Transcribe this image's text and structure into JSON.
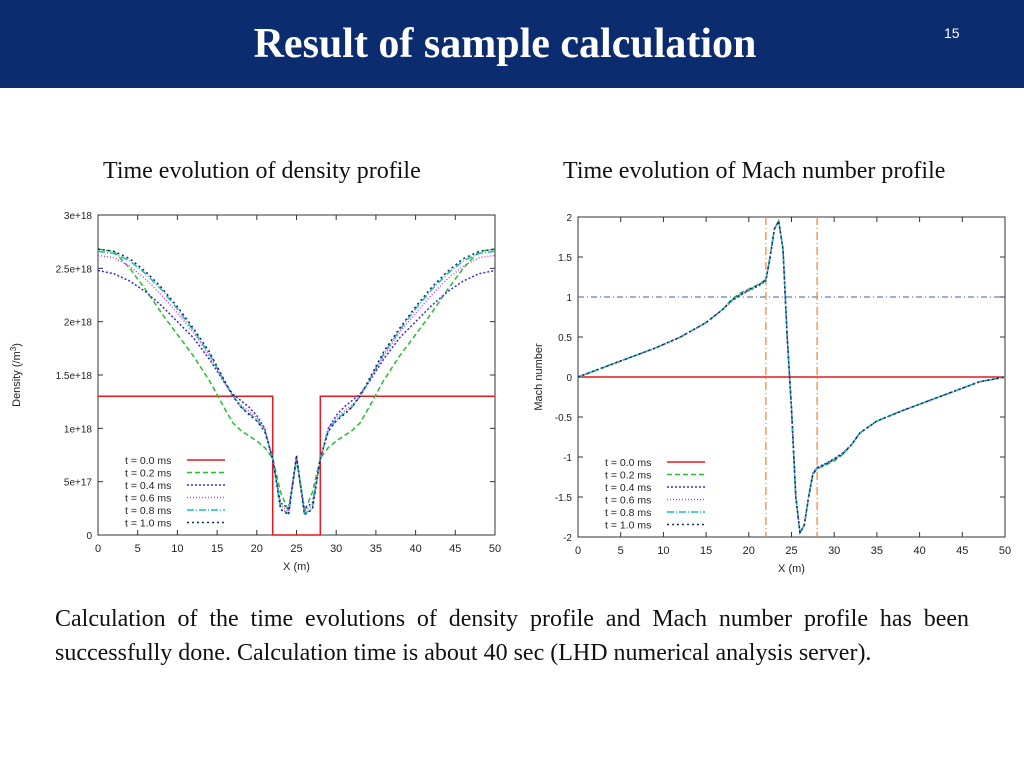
{
  "header": {
    "title": "Result of sample calculation",
    "page_number": "15",
    "background_color": "#0b2c6e"
  },
  "captions": {
    "left": "Time evolution of density profile",
    "right": "Time evolution of Mach number profile"
  },
  "body_text": "Calculation of the time evolutions of density profile and Mach number profile has been successfully done. Calculation time is about 40 sec (LHD numerical analysis server).",
  "chart_data": [
    {
      "type": "line",
      "xlabel": "X (m)",
      "ylabel": "Density (/m",
      "ylabel_sup": "3",
      "ylabel_close": ")",
      "xlim": [
        0,
        50
      ],
      "ylim": [
        0,
        3e+18
      ],
      "x_ticks": [
        0,
        5,
        10,
        15,
        20,
        25,
        30,
        35,
        40,
        45,
        50
      ],
      "x_tick_labels": [
        "0",
        "5",
        "10",
        "15",
        "20",
        "25",
        "30",
        "35",
        "40",
        "45",
        "50"
      ],
      "y_ticks": [
        0,
        5e+17,
        1e+18,
        1.5e+18,
        2e+18,
        2.5e+18,
        3e+18
      ],
      "y_tick_labels": [
        "0",
        "5e+17",
        "1e+18",
        "1.5e+18",
        "2e+18",
        "2.5e+18",
        "3e+18"
      ],
      "legend_position": "bottom-left",
      "series": [
        {
          "name": "t = 0.0 ms",
          "color": "#e41a1c",
          "dash": "",
          "x": [
            0,
            22,
            22,
            28,
            28,
            50
          ],
          "y": [
            1.3e+18,
            1.3e+18,
            0,
            0,
            1.3e+18,
            1.3e+18
          ]
        },
        {
          "name": "t = 0.2 ms",
          "color": "#22c02e",
          "dash": "5,3",
          "x": [
            0,
            2,
            4,
            6,
            8,
            10,
            12,
            14,
            16,
            17,
            18,
            19,
            20,
            21,
            22,
            23,
            24,
            25,
            26,
            27,
            28,
            29,
            30,
            31,
            32,
            33,
            34,
            36,
            38,
            40,
            42,
            44,
            46,
            48,
            50
          ],
          "y": [
            2.68e+18,
            2.66e+18,
            2.5e+18,
            2.3e+18,
            2.08e+18,
            1.88e+18,
            1.68e+18,
            1.45e+18,
            1.18e+18,
            1.05e+18,
            9.8e+17,
            9.3e+17,
            8.8e+17,
            8.2e+17,
            7.2e+17,
            4e+17,
            2.2e+17,
            7e+17,
            2.2e+17,
            4e+17,
            7.2e+17,
            8.2e+17,
            8.8e+17,
            9.3e+17,
            9.8e+17,
            1.05e+18,
            1.18e+18,
            1.45e+18,
            1.68e+18,
            1.88e+18,
            2.08e+18,
            2.3e+18,
            2.5e+18,
            2.66e+18,
            2.68e+18
          ]
        },
        {
          "name": "t = 0.4 ms",
          "color": "#3a2bd6",
          "dash": "2,2",
          "x": [
            0,
            2,
            4,
            6,
            8,
            10,
            12,
            14,
            16,
            17,
            18,
            19,
            20,
            21,
            22,
            23,
            24,
            25,
            26,
            27,
            28,
            29,
            30,
            31,
            32,
            33,
            34,
            36,
            38,
            40,
            42,
            44,
            46,
            48,
            50
          ],
          "y": [
            2.48e+18,
            2.45e+18,
            2.38e+18,
            2.28e+18,
            2.15e+18,
            2e+18,
            1.85e+18,
            1.65e+18,
            1.42e+18,
            1.32e+18,
            1.26e+18,
            1.2e+18,
            1.12e+18,
            1e+18,
            7e+17,
            3e+17,
            2.5e+17,
            7.2e+17,
            2.5e+17,
            3e+17,
            7e+17,
            1e+18,
            1.12e+18,
            1.2e+18,
            1.26e+18,
            1.32e+18,
            1.42e+18,
            1.65e+18,
            1.85e+18,
            2e+18,
            2.15e+18,
            2.28e+18,
            2.38e+18,
            2.45e+18,
            2.48e+18
          ]
        },
        {
          "name": "t = 0.6 ms",
          "color": "#d63ad6",
          "dash": "1,2",
          "x": [
            0,
            2,
            4,
            6,
            8,
            10,
            12,
            14,
            16,
            17,
            18,
            19,
            20,
            21,
            22,
            23,
            24,
            25,
            26,
            27,
            28,
            29,
            30,
            31,
            32,
            33,
            34,
            36,
            38,
            40,
            42,
            44,
            46,
            48,
            50
          ],
          "y": [
            2.62e+18,
            2.6e+18,
            2.52e+18,
            2.4e+18,
            2.25e+18,
            2.08e+18,
            1.9e+18,
            1.68e+18,
            1.42e+18,
            1.3e+18,
            1.22e+18,
            1.16e+18,
            1.1e+18,
            1e+18,
            7.2e+17,
            2.8e+17,
            2.2e+17,
            7.2e+17,
            2.2e+17,
            2.8e+17,
            7.2e+17,
            1e+18,
            1.1e+18,
            1.16e+18,
            1.22e+18,
            1.3e+18,
            1.42e+18,
            1.68e+18,
            1.9e+18,
            2.08e+18,
            2.25e+18,
            2.4e+18,
            2.52e+18,
            2.6e+18,
            2.62e+18
          ]
        },
        {
          "name": "t = 0.8 ms",
          "color": "#1cb8c8",
          "dash": "7,2,1,2",
          "x": [
            0,
            2,
            4,
            6,
            8,
            10,
            12,
            14,
            16,
            17,
            18,
            19,
            20,
            21,
            22,
            23,
            24,
            25,
            26,
            27,
            28,
            29,
            30,
            31,
            32,
            33,
            34,
            36,
            38,
            40,
            42,
            44,
            46,
            48,
            50
          ],
          "y": [
            2.66e+18,
            2.64e+18,
            2.57e+18,
            2.45e+18,
            2.3e+18,
            2.12e+18,
            1.92e+18,
            1.7e+18,
            1.43e+18,
            1.3e+18,
            1.2e+18,
            1.14e+18,
            1.08e+18,
            9.8e+17,
            7.2e+17,
            2.5e+17,
            2e+17,
            7.4e+17,
            2e+17,
            2.5e+17,
            7.2e+17,
            9.8e+17,
            1.08e+18,
            1.14e+18,
            1.2e+18,
            1.3e+18,
            1.43e+18,
            1.7e+18,
            1.92e+18,
            2.12e+18,
            2.3e+18,
            2.45e+18,
            2.57e+18,
            2.64e+18,
            2.66e+18
          ]
        },
        {
          "name": "t = 1.0 ms",
          "color": "#1a2a5a",
          "dash": "2,3",
          "x": [
            0,
            2,
            4,
            6,
            8,
            10,
            12,
            14,
            16,
            17,
            18,
            19,
            20,
            21,
            22,
            23,
            24,
            25,
            26,
            27,
            28,
            29,
            30,
            31,
            32,
            33,
            34,
            36,
            38,
            40,
            42,
            44,
            46,
            48,
            50
          ],
          "y": [
            2.68e+18,
            2.66e+18,
            2.59e+18,
            2.47e+18,
            2.32e+18,
            2.14e+18,
            1.94e+18,
            1.72e+18,
            1.44e+18,
            1.3e+18,
            1.2e+18,
            1.13e+18,
            1.07e+18,
            9.7e+17,
            7.2e+17,
            2.4e+17,
            1.9e+17,
            7.5e+17,
            1.9e+17,
            2.4e+17,
            7.2e+17,
            9.7e+17,
            1.07e+18,
            1.13e+18,
            1.2e+18,
            1.3e+18,
            1.44e+18,
            1.72e+18,
            1.94e+18,
            2.14e+18,
            2.32e+18,
            2.47e+18,
            2.59e+18,
            2.66e+18,
            2.68e+18
          ]
        }
      ]
    },
    {
      "type": "line",
      "xlabel": "X (m)",
      "ylabel": "Mach number",
      "xlim": [
        0,
        50
      ],
      "ylim": [
        -2,
        2
      ],
      "x_ticks": [
        0,
        5,
        10,
        15,
        20,
        25,
        30,
        35,
        40,
        45,
        50
      ],
      "x_tick_labels": [
        "0",
        "5",
        "10",
        "15",
        "20",
        "25",
        "30",
        "35",
        "40",
        "45",
        "50"
      ],
      "y_ticks": [
        -2,
        -1.5,
        -1,
        -0.5,
        0,
        0.5,
        1,
        1.5,
        2
      ],
      "y_tick_labels": [
        "-2",
        "-1.5",
        "-1",
        "-0.5",
        "0",
        "0.5",
        "1",
        "1.5",
        "2"
      ],
      "legend_position": "bottom-left",
      "reference_lines": [
        {
          "orientation": "horizontal",
          "value": 1,
          "color": "#3b5fa8"
        },
        {
          "orientation": "vertical",
          "value": 22,
          "color": "#f08a3c"
        },
        {
          "orientation": "vertical",
          "value": 28,
          "color": "#f08a3c"
        }
      ],
      "series": [
        {
          "name": "t = 0.0 ms",
          "color": "#e41a1c",
          "dash": "",
          "x": [
            0,
            50
          ],
          "y": [
            0,
            0
          ]
        },
        {
          "name": "t = 0.2 ms",
          "color": "#22c02e",
          "dash": "5,3",
          "x": [
            0,
            3,
            6,
            9,
            12,
            15,
            17,
            18,
            19,
            20,
            21,
            22,
            22.5,
            23,
            23.5,
            24,
            24.5,
            25,
            25.5,
            26,
            26.5,
            27,
            27.5,
            28,
            29,
            30,
            31,
            32,
            33,
            35,
            38,
            41,
            44,
            47,
            50
          ],
          "y": [
            0,
            0.12,
            0.24,
            0.36,
            0.5,
            0.68,
            0.85,
            0.97,
            1.05,
            1.1,
            1.15,
            1.22,
            1.5,
            1.85,
            1.95,
            1.6,
            0.5,
            -0.4,
            -1.5,
            -1.95,
            -1.85,
            -1.5,
            -1.22,
            -1.15,
            -1.1,
            -1.05,
            -0.97,
            -0.85,
            -0.7,
            -0.55,
            -0.42,
            -0.3,
            -0.18,
            -0.06,
            0
          ]
        },
        {
          "name": "t = 0.4 ms",
          "color": "#3a2bd6",
          "dash": "2,2",
          "x": [
            0,
            3,
            6,
            9,
            12,
            15,
            17,
            18,
            19,
            20,
            21,
            22,
            22.5,
            23,
            23.5,
            24,
            24.5,
            25,
            25.5,
            26,
            26.5,
            27,
            27.5,
            28,
            29,
            30,
            31,
            32,
            33,
            35,
            38,
            41,
            44,
            47,
            50
          ],
          "y": [
            0,
            0.12,
            0.24,
            0.36,
            0.5,
            0.68,
            0.85,
            0.95,
            1.02,
            1.08,
            1.13,
            1.2,
            1.5,
            1.85,
            1.95,
            1.6,
            0.5,
            -0.4,
            -1.5,
            -1.95,
            -1.85,
            -1.5,
            -1.2,
            -1.13,
            -1.08,
            -1.02,
            -0.95,
            -0.85,
            -0.7,
            -0.55,
            -0.42,
            -0.3,
            -0.18,
            -0.06,
            0
          ]
        },
        {
          "name": "t = 0.6 ms",
          "color": "#d63ad6",
          "dash": "1,2",
          "x": [
            0,
            3,
            6,
            9,
            12,
            15,
            17,
            18,
            19,
            20,
            21,
            22,
            22.5,
            23,
            23.5,
            24,
            24.5,
            25,
            25.5,
            26,
            26.5,
            27,
            27.5,
            28,
            29,
            30,
            31,
            32,
            33,
            35,
            38,
            41,
            44,
            47,
            50
          ],
          "y": [
            0,
            0.12,
            0.24,
            0.36,
            0.5,
            0.68,
            0.85,
            0.96,
            1.03,
            1.09,
            1.14,
            1.21,
            1.5,
            1.85,
            1.95,
            1.6,
            0.5,
            -0.4,
            -1.5,
            -1.95,
            -1.85,
            -1.5,
            -1.21,
            -1.14,
            -1.09,
            -1.03,
            -0.96,
            -0.85,
            -0.7,
            -0.55,
            -0.42,
            -0.3,
            -0.18,
            -0.06,
            0
          ]
        },
        {
          "name": "t = 0.8 ms",
          "color": "#1cb8c8",
          "dash": "7,2,1,2",
          "x": [
            0,
            3,
            6,
            9,
            12,
            15,
            17,
            18,
            19,
            20,
            21,
            22,
            22.5,
            23,
            23.5,
            24,
            24.5,
            25,
            25.5,
            26,
            26.5,
            27,
            27.5,
            28,
            29,
            30,
            31,
            32,
            33,
            35,
            38,
            41,
            44,
            47,
            50
          ],
          "y": [
            0,
            0.12,
            0.24,
            0.36,
            0.5,
            0.68,
            0.85,
            0.96,
            1.03,
            1.09,
            1.14,
            1.21,
            1.5,
            1.85,
            1.95,
            1.6,
            0.5,
            -0.4,
            -1.5,
            -1.95,
            -1.85,
            -1.5,
            -1.21,
            -1.14,
            -1.09,
            -1.03,
            -0.96,
            -0.85,
            -0.7,
            -0.55,
            -0.42,
            -0.3,
            -0.18,
            -0.06,
            0
          ]
        },
        {
          "name": "t = 1.0 ms",
          "color": "#1a2a5a",
          "dash": "2,3",
          "x": [
            0,
            3,
            6,
            9,
            12,
            15,
            17,
            18,
            19,
            20,
            21,
            22,
            22.5,
            23,
            23.5,
            24,
            24.5,
            25,
            25.5,
            26,
            26.5,
            27,
            27.5,
            28,
            29,
            30,
            31,
            32,
            33,
            35,
            38,
            41,
            44,
            47,
            50
          ],
          "y": [
            0,
            0.12,
            0.24,
            0.36,
            0.5,
            0.68,
            0.85,
            0.96,
            1.03,
            1.09,
            1.14,
            1.21,
            1.5,
            1.85,
            1.95,
            1.6,
            0.5,
            -0.4,
            -1.5,
            -1.95,
            -1.85,
            -1.5,
            -1.21,
            -1.14,
            -1.09,
            -1.03,
            -0.96,
            -0.85,
            -0.7,
            -0.55,
            -0.42,
            -0.3,
            -0.18,
            -0.06,
            0
          ]
        }
      ]
    }
  ]
}
